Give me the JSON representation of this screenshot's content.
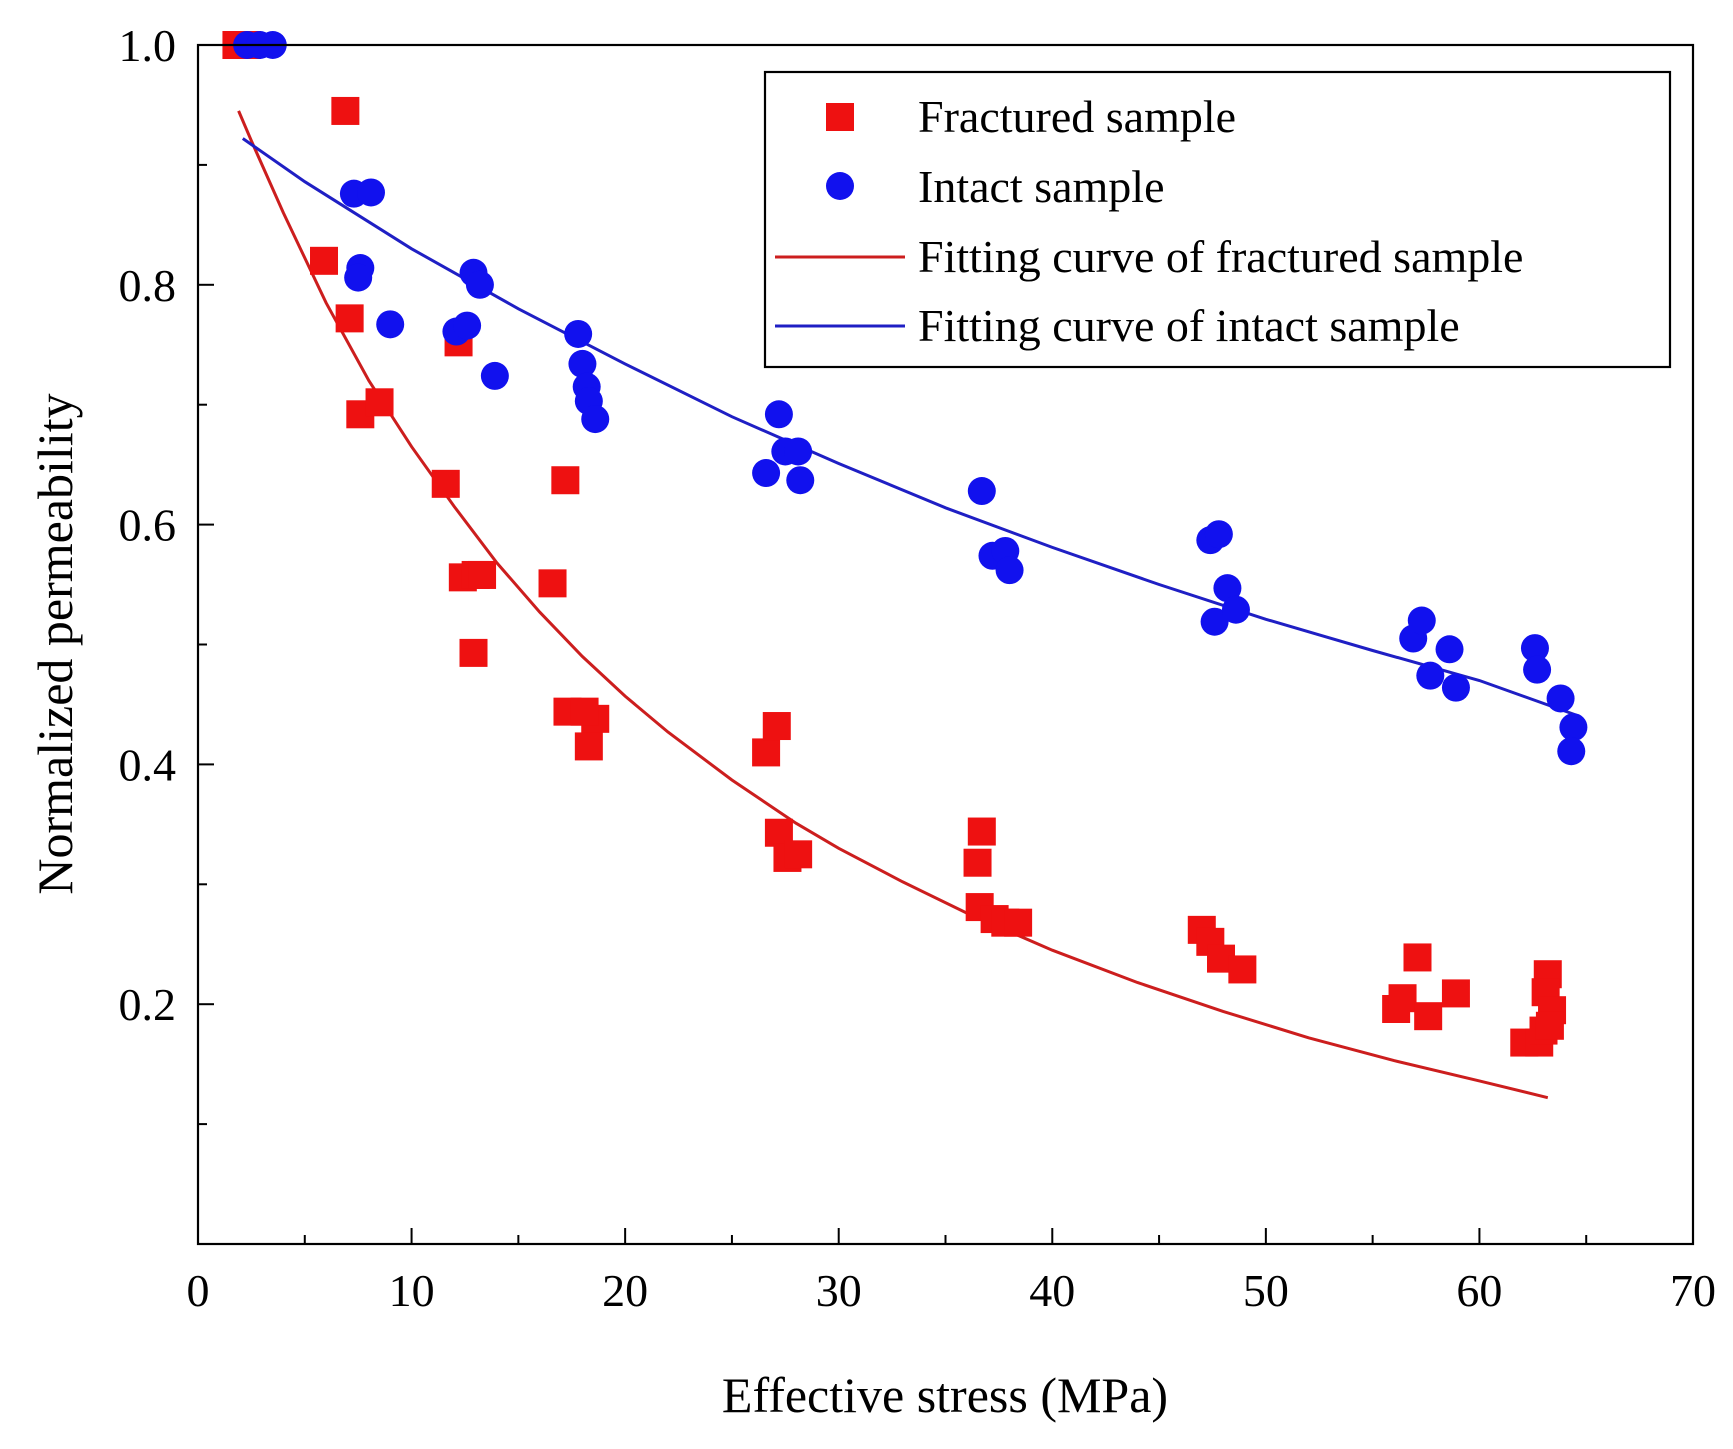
{
  "chart_data": {
    "type": "scatter",
    "title": "",
    "xlabel": "Effective stress (MPa)",
    "ylabel": "Normalized permeability",
    "xlim": [
      0,
      70
    ],
    "ylim": [
      0,
      1.0
    ],
    "x_ticks": [
      0,
      10,
      20,
      30,
      40,
      50,
      60,
      70
    ],
    "x_tick_labels": [
      "0",
      "10",
      "20",
      "30",
      "40",
      "50",
      "60",
      "70"
    ],
    "y_ticks": [
      0.1,
      0.2,
      0.3,
      0.4,
      0.5,
      0.6,
      0.7,
      0.8,
      0.9,
      1.0
    ],
    "y_tick_labels": {
      "0.2": "0.2",
      "0.4": "0.4",
      "0.6": "0.6",
      "0.8": "0.8",
      "1.0": "1.0"
    },
    "legend_position": "top-right",
    "colors": {
      "fractured": "#ee1111",
      "intact": "#1111ee",
      "fractured_fit": "#cc1e1e",
      "intact_fit": "#1f1fc4"
    },
    "legend": [
      {
        "label": "Fractured sample",
        "kind": "square",
        "color": "#ee1111"
      },
      {
        "label": "Intact sample",
        "kind": "circle",
        "color": "#1111ee"
      },
      {
        "label": "Fitting curve of fractured sample",
        "kind": "line",
        "color": "#cc1e1e"
      },
      {
        "label": "Fitting curve of intact sample",
        "kind": "line",
        "color": "#1f1fc4"
      }
    ],
    "series": [
      {
        "name": "Fractured sample",
        "kind": "square",
        "color": "#ee1111",
        "x": [
          1.8,
          2.3,
          6.9,
          5.9,
          7.1,
          7.6,
          8.5,
          12.2,
          11.6,
          12.4,
          13.0,
          13.3,
          12.9,
          17.2,
          16.6,
          17.3,
          18.3,
          18.6,
          18.1,
          26.6,
          27.1,
          27.2,
          27.6,
          28.1,
          36.7,
          36.5,
          36.6,
          37.3,
          37.8,
          38.4,
          47.0,
          47.4,
          47.9,
          48.9,
          56.1,
          56.4,
          57.1,
          57.6,
          58.9,
          62.1,
          62.8,
          63.2,
          63.1,
          63.4,
          63.0,
          63.3
        ],
        "y": [
          1.0,
          1.0,
          0.945,
          0.82,
          0.772,
          0.692,
          0.702,
          0.752,
          0.634,
          0.556,
          0.558,
          0.558,
          0.493,
          0.637,
          0.551,
          0.444,
          0.415,
          0.438,
          0.444,
          0.41,
          0.432,
          0.343,
          0.322,
          0.325,
          0.344,
          0.318,
          0.281,
          0.271,
          0.268,
          0.268,
          0.262,
          0.252,
          0.238,
          0.229,
          0.196,
          0.205,
          0.239,
          0.19,
          0.209,
          0.168,
          0.168,
          0.225,
          0.21,
          0.195,
          0.178,
          0.182
        ]
      },
      {
        "name": "Intact sample",
        "kind": "circle",
        "color": "#1111ee",
        "x": [
          2.3,
          2.9,
          3.5,
          7.3,
          8.1,
          7.6,
          7.5,
          9.0,
          12.1,
          12.6,
          12.9,
          13.2,
          13.9,
          17.8,
          18.0,
          18.2,
          18.3,
          18.6,
          26.6,
          27.2,
          27.5,
          28.1,
          28.2,
          36.7,
          37.2,
          37.8,
          38.0,
          47.4,
          47.8,
          48.2,
          47.6,
          48.6,
          56.9,
          57.3,
          57.7,
          58.6,
          58.9,
          62.6,
          62.7,
          63.8,
          64.4,
          64.3
        ],
        "y": [
          1.0,
          1.0,
          1.0,
          0.876,
          0.877,
          0.814,
          0.806,
          0.767,
          0.761,
          0.766,
          0.81,
          0.8,
          0.724,
          0.759,
          0.734,
          0.715,
          0.703,
          0.688,
          0.643,
          0.692,
          0.661,
          0.661,
          0.637,
          0.628,
          0.574,
          0.578,
          0.562,
          0.587,
          0.592,
          0.547,
          0.519,
          0.529,
          0.505,
          0.52,
          0.474,
          0.496,
          0.464,
          0.497,
          0.479,
          0.455,
          0.431,
          0.411
        ]
      },
      {
        "name": "Fitting curve of fractured sample",
        "kind": "line",
        "color": "#cc1e1e",
        "x": [
          1.9,
          2.5,
          4,
          6,
          8,
          10,
          12,
          14,
          16,
          18,
          20,
          22,
          25,
          28,
          30,
          33,
          36,
          40,
          44,
          48,
          52,
          56,
          60,
          63.2
        ],
        "y": [
          0.945,
          0.92,
          0.86,
          0.785,
          0.72,
          0.665,
          0.615,
          0.568,
          0.527,
          0.49,
          0.457,
          0.427,
          0.387,
          0.351,
          0.33,
          0.302,
          0.276,
          0.245,
          0.218,
          0.194,
          0.172,
          0.153,
          0.136,
          0.122
        ]
      },
      {
        "name": "Fitting curve of intact sample",
        "kind": "line",
        "color": "#1f1fc4",
        "x": [
          2.1,
          5,
          10,
          15,
          20,
          25,
          30,
          35,
          40,
          45,
          50,
          55,
          60,
          64.7
        ],
        "y": [
          0.922,
          0.886,
          0.83,
          0.78,
          0.734,
          0.69,
          0.651,
          0.614,
          0.581,
          0.55,
          0.521,
          0.495,
          0.47,
          0.44
        ]
      }
    ]
  }
}
